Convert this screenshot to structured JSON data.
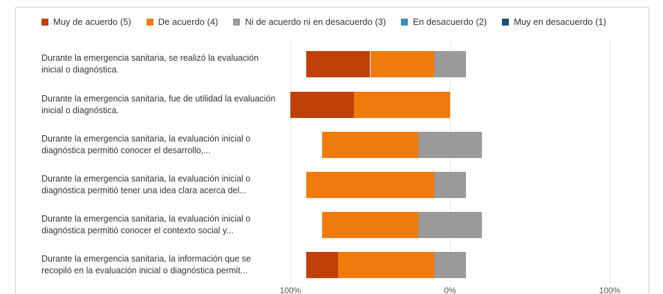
{
  "chart_data": {
    "type": "diverging-bar",
    "categories": [
      "Durante la emergencia sanitaria, se realizó la evaluación inicial o diagnóstica.",
      "Durante la emergencia sanitaria, fue de utilidad la evaluación inicial o diagnóstica.",
      "Durante la emergencia sanitaria, la evaluación inicial o diagnóstica permitió conocer el desarrollo,...",
      "Durante la emergencia sanitaria, la evaluación inicial o diagnóstica permitió tener una idea clara acerca del...",
      "Durante la emergencia sanitaria, la evaluación inicial o diagnóstica permitió conocer el contexto social y...",
      "Durante la emergencia sanitaria, la información que se recopiló en la evaluación inicial o diagnóstica permit..."
    ],
    "series": [
      {
        "name": "Muy de acuerdo (5)",
        "color": "#c0400a",
        "values": [
          40,
          40,
          0,
          0,
          0,
          20
        ]
      },
      {
        "name": "De acuerdo (4)",
        "color": "#ef7b0e",
        "values": [
          40,
          60,
          60,
          80,
          60,
          60
        ]
      },
      {
        "name": "Ni de acuerdo ni en desacuerdo (3)",
        "color": "#9a9a9a",
        "values": [
          20,
          0,
          40,
          20,
          40,
          20
        ]
      },
      {
        "name": "En desacuerdo (2)",
        "color": "#3a8fc9",
        "values": [
          0,
          0,
          0,
          0,
          0,
          0
        ]
      },
      {
        "name": "Muy en desacuerdo (1)",
        "color": "#1f4e79",
        "values": [
          0,
          0,
          0,
          0,
          0,
          0
        ]
      }
    ],
    "xlim": [
      -100,
      100
    ],
    "xticks": [
      {
        "value": -100,
        "label": "100%"
      },
      {
        "value": 0,
        "label": "0%"
      },
      {
        "value": 100,
        "label": "100%"
      }
    ],
    "grid": true
  }
}
